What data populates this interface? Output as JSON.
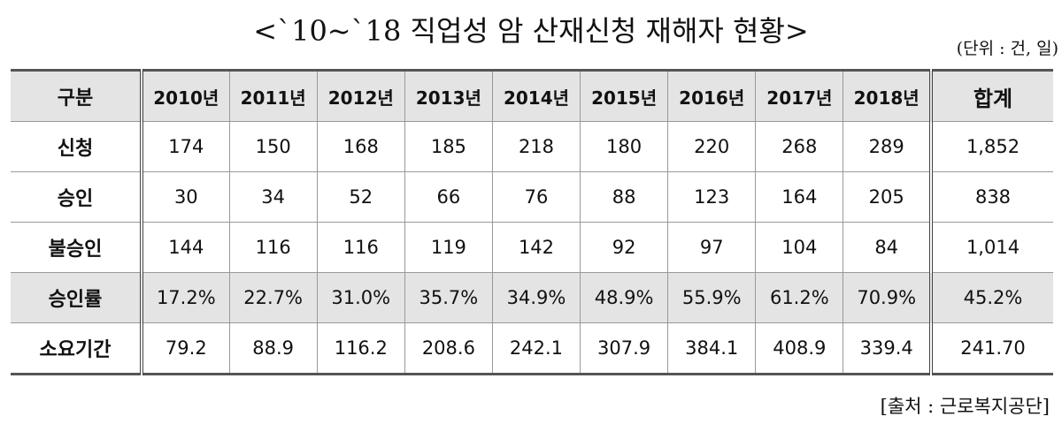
{
  "header": {
    "title": "<`10~`18 직업성 암 산재신청 재해자 현황>",
    "unit": "(단위 : 건, 일)"
  },
  "table": {
    "columns": [
      "구분",
      "2010년",
      "2011년",
      "2012년",
      "2013년",
      "2014년",
      "2015년",
      "2016년",
      "2017년",
      "2018년",
      "합계"
    ],
    "rows": [
      [
        "신청",
        "174",
        "150",
        "168",
        "185",
        "218",
        "180",
        "220",
        "268",
        "289",
        "1,852"
      ],
      [
        "승인",
        "30",
        "34",
        "52",
        "66",
        "76",
        "88",
        "123",
        "164",
        "205",
        "838"
      ],
      [
        "불승인",
        "144",
        "116",
        "116",
        "119",
        "142",
        "92",
        "97",
        "104",
        "84",
        "1,014"
      ],
      [
        "승인률",
        "17.2%",
        "22.7%",
        "31.0%",
        "35.7%",
        "34.9%",
        "48.9%",
        "55.9%",
        "61.2%",
        "70.9%",
        "45.2%"
      ],
      [
        "소요기간",
        "79.2",
        "88.9",
        "116.2",
        "208.6",
        "242.1",
        "307.9",
        "384.1",
        "408.9",
        "339.4",
        "241.70"
      ]
    ]
  },
  "footer": {
    "source": "[출처 : 근로복지공단]"
  }
}
